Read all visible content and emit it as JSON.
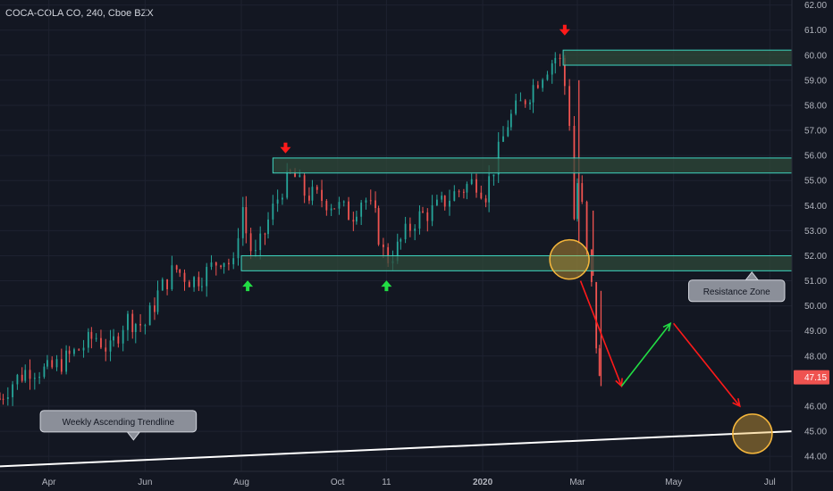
{
  "header": {
    "symbol_title": "COCA-COLA CO, 240, Cboe BZX"
  },
  "colors": {
    "background": "#131722",
    "up": "#26a69a",
    "down": "#ef5350",
    "zone_fill": "#2f4a3a",
    "zone_border": "#3ed6c2",
    "axis_text": "#b2b5be",
    "grid": "#1e2230",
    "arrow_red": "#ff1a1a",
    "arrow_green": "#22dd44",
    "circle": "#f5b63b",
    "price_tag": "#ef5350"
  },
  "chart_data": {
    "type": "candlestick",
    "title": "COCA-COLA CO, 240, Cboe BZX",
    "y_axis": {
      "ylim": [
        43.4,
        62.2
      ],
      "ticks": [
        44,
        45,
        46,
        47,
        48,
        49,
        50,
        51,
        52,
        53,
        54,
        55,
        56,
        57,
        58,
        59,
        60,
        61,
        62
      ],
      "tick_labels": [
        "44.00",
        "45.00",
        "46.00",
        "47.00",
        "48.00",
        "49.00",
        "50.00",
        "51.00",
        "52.00",
        "53.00",
        "54.00",
        "55.00",
        "56.00",
        "57.00",
        "58.00",
        "59.00",
        "60.00",
        "61.00",
        "62.00"
      ]
    },
    "x_axis": {
      "xlim": [
        "2019-03-01",
        "2020-07-15"
      ],
      "ticks": [
        {
          "date": "2019-04-01",
          "label": "Apr"
        },
        {
          "date": "2019-06-01",
          "label": "Jun"
        },
        {
          "date": "2019-08-01",
          "label": "Aug"
        },
        {
          "date": "2019-10-01",
          "label": "Oct"
        },
        {
          "date": "2019-11-01",
          "label": "11"
        },
        {
          "date": "2020-01-01",
          "label": "2020"
        },
        {
          "date": "2020-03-01",
          "label": "Mar"
        },
        {
          "date": "2020-05-01",
          "label": "May"
        },
        {
          "date": "2020-07-01",
          "label": "Jul"
        }
      ]
    },
    "price_path": [
      [
        "2019-03-01",
        46.3
      ],
      [
        "2019-03-10",
        47.0
      ],
      [
        "2019-03-20",
        47.5
      ],
      [
        "2019-04-01",
        47.4
      ],
      [
        "2019-04-15",
        48.0
      ],
      [
        "2019-05-01",
        48.8
      ],
      [
        "2019-05-10",
        48.2
      ],
      [
        "2019-05-20",
        49.5
      ],
      [
        "2019-06-01",
        49.2
      ],
      [
        "2019-06-10",
        50.5
      ],
      [
        "2019-06-20",
        51.5
      ],
      [
        "2019-07-01",
        51.0
      ],
      [
        "2019-07-10",
        51.3
      ],
      [
        "2019-07-20",
        52.0
      ],
      [
        "2019-07-28",
        51.5
      ],
      [
        "2019-08-01",
        54.3
      ],
      [
        "2019-08-06",
        52.5
      ],
      [
        "2019-08-10",
        51.9
      ],
      [
        "2019-08-20",
        53.6
      ],
      [
        "2019-08-27",
        54.7
      ],
      [
        "2019-09-03",
        55.3
      ],
      [
        "2019-09-10",
        54.5
      ],
      [
        "2019-09-20",
        54.3
      ],
      [
        "2019-10-01",
        54.0
      ],
      [
        "2019-10-10",
        53.6
      ],
      [
        "2019-10-18",
        54.4
      ],
      [
        "2019-10-25",
        53.5
      ],
      [
        "2019-11-01",
        51.8
      ],
      [
        "2019-11-08",
        52.3
      ],
      [
        "2019-11-20",
        53.5
      ],
      [
        "2019-12-01",
        53.8
      ],
      [
        "2019-12-15",
        54.5
      ],
      [
        "2019-12-28",
        55.0
      ],
      [
        "2020-01-03",
        54.5
      ],
      [
        "2020-01-10",
        55.8
      ],
      [
        "2020-01-17",
        57.3
      ],
      [
        "2020-01-25",
        58.0
      ],
      [
        "2020-02-01",
        58.6
      ],
      [
        "2020-02-10",
        59.5
      ],
      [
        "2020-02-18",
        60.0
      ],
      [
        "2020-02-21",
        59.5
      ],
      [
        "2020-02-26",
        57.0
      ],
      [
        "2020-02-28",
        53.5
      ],
      [
        "2020-03-03",
        55.5
      ],
      [
        "2020-03-06",
        52.5
      ],
      [
        "2020-03-09",
        51.5
      ],
      [
        "2020-03-11",
        50.2
      ],
      [
        "2020-03-13",
        48.5
      ],
      [
        "2020-03-16",
        46.9
      ]
    ],
    "wicks": [
      {
        "date": "2020-03-02",
        "high": 59.0,
        "low": 52.5
      },
      {
        "date": "2020-03-11",
        "high": 53.8,
        "low": 51.2
      },
      {
        "date": "2020-03-16",
        "high": 50.6,
        "low": 46.8
      }
    ],
    "zones": [
      {
        "from": "2020-02-21",
        "to": "2020-07-15",
        "low": 59.6,
        "high": 60.2
      },
      {
        "from": "2019-08-21",
        "to": "2020-07-15",
        "low": 55.3,
        "high": 55.9
      },
      {
        "from": "2019-08-01",
        "to": "2020-07-15",
        "low": 51.4,
        "high": 52.0
      }
    ],
    "trendline": [
      [
        "2019-03-01",
        43.6
      ],
      [
        "2020-07-15",
        45.0
      ]
    ],
    "markers": {
      "down_arrows": [
        {
          "date": "2019-08-29",
          "price": 56.3
        },
        {
          "date": "2020-02-22",
          "price": 61.0
        }
      ],
      "up_arrows": [
        {
          "date": "2019-08-05",
          "price": 50.8
        },
        {
          "date": "2019-11-01",
          "price": 50.8
        }
      ]
    },
    "circles": [
      {
        "date": "2020-02-25",
        "price": 51.85
      },
      {
        "date": "2020-06-20",
        "price": 44.9
      }
    ],
    "projection": [
      {
        "color": "red",
        "from": [
          "2020-03-03",
          51.0
        ],
        "to": [
          "2020-03-29",
          46.8
        ]
      },
      {
        "color": "green",
        "from": [
          "2020-03-29",
          46.8
        ],
        "to": [
          "2020-04-29",
          49.3
        ]
      },
      {
        "color": "red",
        "from": [
          "2020-05-01",
          49.3
        ],
        "to": [
          "2020-06-12",
          46.0
        ]
      }
    ],
    "annotations": [
      {
        "text": "Resistance Zone",
        "date": "2020-06-10",
        "price": 50.6
      },
      {
        "text": "Weekly Ascending Trendline",
        "date": "2019-05-15",
        "price": 45.4
      }
    ],
    "last_price": {
      "value": 47.15,
      "label": "47.15"
    }
  }
}
